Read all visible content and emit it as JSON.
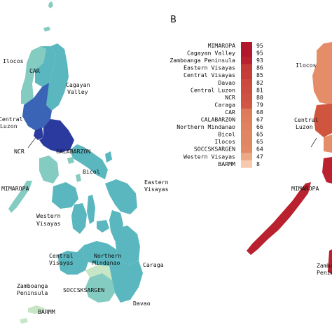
{
  "panel_letter": "B",
  "left_map": {
    "labels": {
      "ilocos": "Ilocos",
      "car": "CAR",
      "cagayan_valley_1": "Cagayan",
      "cagayan_valley_2": "Valley",
      "central_luzon_1": "Central",
      "central_luzon_2": "Luzon",
      "ncr": "NCR",
      "calabarzon": "CALABARZON",
      "bicol": "Bicol",
      "mimaropa": "MIMAROPA",
      "eastern_visayas_1": "Eastern",
      "eastern_visayas_2": "Visayas",
      "western_visayas_1": "Western",
      "western_visayas_2": "Visayas",
      "central_visayas_1": "Central",
      "central_visayas_2": "Visayas",
      "northern_mindanao_1": "Northern",
      "northern_mindanao_2": "Mindanao",
      "caraga": "Caraga",
      "zamboanga_1": "Zamboanga",
      "zamboanga_2": "Peninsula",
      "soccsksargen": "SOCCSKSARGEN",
      "davao": "Davao",
      "barmm": "BARMM"
    }
  },
  "right_map": {
    "labels": {
      "ilocos": "Ilocos",
      "central_luzon_1": "Central",
      "central_luzon_2": "Luzon",
      "mimaropa": "MIMAROPA",
      "zamboanga_1": "Zamboa",
      "zamboanga_2": "Penins"
    }
  },
  "legend": {
    "items": [
      {
        "label": "MIMAROPA",
        "value": "95",
        "color": "#b2182b"
      },
      {
        "label": "Cagayan Valley",
        "value": "95",
        "color": "#b2182b"
      },
      {
        "label": "Zamboanga Peninsula",
        "value": "93",
        "color": "#b8212d"
      },
      {
        "label": "Eastern Visayas",
        "value": "86",
        "color": "#c43a35"
      },
      {
        "label": "Central Visayas",
        "value": "85",
        "color": "#c63e37"
      },
      {
        "label": "Davao",
        "value": "82",
        "color": "#cb4a3d"
      },
      {
        "label": "Central Luzon",
        "value": "81",
        "color": "#cd4e40"
      },
      {
        "label": "NCR",
        "value": "80",
        "color": "#cf5242"
      },
      {
        "label": "Caraga",
        "value": "79",
        "color": "#d15645"
      },
      {
        "label": "CAR",
        "value": "68",
        "color": "#dd7a5a"
      },
      {
        "label": "CALABARZON",
        "value": "67",
        "color": "#de7e5d"
      },
      {
        "label": "Northern Mindanao",
        "value": "66",
        "color": "#e0825f"
      },
      {
        "label": "Bicol",
        "value": "65",
        "color": "#e18662"
      },
      {
        "label": "Ilocos",
        "value": "65",
        "color": "#e18662"
      },
      {
        "label": "SOCCSKSARGEN",
        "value": "64",
        "color": "#e28a65"
      },
      {
        "label": "Western Visayas",
        "value": "47",
        "color": "#eca986"
      },
      {
        "label": "BARMM",
        "value": "8",
        "color": "#f7c9ad"
      }
    ]
  },
  "colors": {
    "left_dark_blue": "#2b3a9e",
    "left_mid_blue": "#3a64b5",
    "left_teal": "#5ab7bf",
    "left_light_teal": "#84cbc1",
    "left_pale": "#c6e6c6",
    "right_dark_red": "#b8212d",
    "right_mid_red": "#d0553e",
    "right_light_red": "#e58d69"
  }
}
